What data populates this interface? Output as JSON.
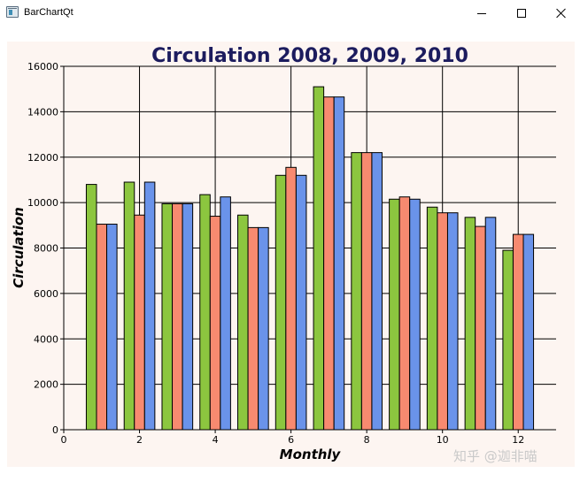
{
  "window": {
    "title": "BarChartQt",
    "icons": {
      "app": "app-window-icon",
      "minimize": "minimize-icon",
      "maximize": "maximize-icon",
      "close": "close-icon"
    }
  },
  "watermark": "知乎 @迦非喵",
  "colors": {
    "series_2008": "#8cc63f",
    "series_2009": "#f78a70",
    "series_2010": "#6a93ea",
    "title": "#1c1c5e",
    "background": "#fdf5f1"
  },
  "chart_data": {
    "type": "bar",
    "title": "Circulation 2008, 2009, 2010",
    "xlabel": "Monthly",
    "ylabel": "Circulation",
    "xlim": [
      0,
      13
    ],
    "ylim": [
      0,
      16000
    ],
    "grid": true,
    "x": [
      1,
      2,
      3,
      4,
      5,
      6,
      7,
      8,
      9,
      10,
      11,
      12
    ],
    "x_ticks": [
      0,
      2,
      4,
      6,
      8,
      10,
      12
    ],
    "y_ticks": [
      0,
      2000,
      4000,
      6000,
      8000,
      10000,
      12000,
      14000,
      16000
    ],
    "series": [
      {
        "values": [
          10800,
          10900,
          9950,
          10350,
          9450,
          11200,
          15100,
          12200,
          10150,
          9800,
          9350,
          7900
        ],
        "color": "#8cc63f"
      },
      {
        "values": [
          9050,
          9450,
          9950,
          9400,
          8900,
          11550,
          14650,
          12200,
          10250,
          9550,
          8950,
          8600
        ],
        "color": "#f78a70"
      },
      {
        "values": [
          9050,
          10900,
          9950,
          10250,
          8900,
          11200,
          14650,
          12200,
          10150,
          9550,
          9350,
          8600
        ],
        "color": "#6a93ea"
      }
    ]
  }
}
